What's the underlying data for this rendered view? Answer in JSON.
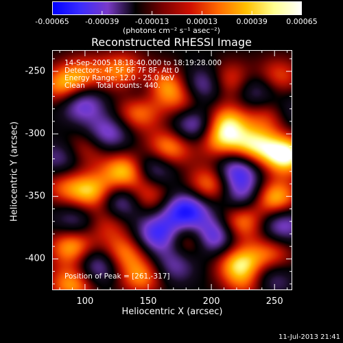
{
  "colorbar": {
    "ticks": [
      "-0.00065",
      "-0.00039",
      "-0.00013",
      "0.00013",
      "0.00039",
      "0.00065"
    ],
    "units": "(photons cm⁻² s⁻¹ asec⁻²)",
    "colors": [
      "#0000ff",
      "#3a2cff",
      "#7a3ac8",
      "#000000",
      "#7a0000",
      "#d01000",
      "#ff6a00",
      "#ffc000",
      "#ffff90",
      "#ffffff"
    ]
  },
  "annotations": {
    "time_range": "14-Sep-2005 18:18:40.000 to 18:19:28.000",
    "detectors": "Detectors: 4F 5F 6F 7F 8F, Att 0",
    "energy_range": "Energy Range: 12.0 - 25.0 keV",
    "algorithm": "Clean     Total counts: 440.",
    "peak": "Position of Peak = [261,-317]"
  },
  "footer": {
    "timestamp": "11-Jul-2013 21:41"
  },
  "chart_data": {
    "type": "heatmap",
    "title": "Reconstructed RHESSI Image",
    "xlabel": "Heliocentric X (arcsec)",
    "ylabel": "Heliocentric Y (arcsec)",
    "xlim": [
      74,
      264
    ],
    "ylim": [
      -425,
      -233
    ],
    "xticks": [
      100,
      150,
      200,
      250
    ],
    "yticks": [
      -250,
      -300,
      -350,
      -400
    ],
    "color_range": [
      -0.00065,
      0.00065
    ],
    "peak_position": [
      261,
      -317
    ],
    "blobs": [
      {
        "x": 83,
        "y": -262,
        "v": 0.00045
      },
      {
        "x": 100,
        "y": -252,
        "v": 0.0003
      },
      {
        "x": 130,
        "y": -250,
        "v": 0.0004
      },
      {
        "x": 162,
        "y": -262,
        "v": 0.0005
      },
      {
        "x": 215,
        "y": -258,
        "v": 0.00038
      },
      {
        "x": 252,
        "y": -255,
        "v": 0.00035
      },
      {
        "x": 142,
        "y": -283,
        "v": 0.0004
      },
      {
        "x": 180,
        "y": -275,
        "v": 0.0003
      },
      {
        "x": 212,
        "y": -290,
        "v": 0.00045
      },
      {
        "x": 248,
        "y": -285,
        "v": 0.00038
      },
      {
        "x": 100,
        "y": -312,
        "v": 0.0003
      },
      {
        "x": 132,
        "y": -330,
        "v": 0.00055
      },
      {
        "x": 166,
        "y": -312,
        "v": 0.00048
      },
      {
        "x": 207,
        "y": -305,
        "v": 0.0004
      },
      {
        "x": 234,
        "y": -310,
        "v": 0.0005
      },
      {
        "x": 259,
        "y": -317,
        "v": 0.00065
      },
      {
        "x": 84,
        "y": -342,
        "v": 0.0003
      },
      {
        "x": 106,
        "y": -347,
        "v": 0.00048
      },
      {
        "x": 150,
        "y": -350,
        "v": 0.00035
      },
      {
        "x": 200,
        "y": -340,
        "v": 0.00045
      },
      {
        "x": 250,
        "y": -352,
        "v": 0.00055
      },
      {
        "x": 118,
        "y": -370,
        "v": 0.0003
      },
      {
        "x": 224,
        "y": -370,
        "v": 0.00045
      },
      {
        "x": 90,
        "y": -390,
        "v": 0.0005
      },
      {
        "x": 130,
        "y": -395,
        "v": 0.0004
      },
      {
        "x": 184,
        "y": -384,
        "v": 0.00045
      },
      {
        "x": 222,
        "y": -404,
        "v": 0.0005
      },
      {
        "x": 247,
        "y": -397,
        "v": 0.00035
      },
      {
        "x": 145,
        "y": -414,
        "v": 0.0004
      },
      {
        "x": 90,
        "y": -420,
        "v": 0.00045
      },
      {
        "x": 230,
        "y": -420,
        "v": 0.0003
      },
      {
        "x": 97,
        "y": -275,
        "v": -0.00042
      },
      {
        "x": 148,
        "y": -265,
        "v": -0.0003
      },
      {
        "x": 194,
        "y": -262,
        "v": -0.0004
      },
      {
        "x": 236,
        "y": -265,
        "v": -0.00035
      },
      {
        "x": 118,
        "y": -300,
        "v": -0.00038
      },
      {
        "x": 187,
        "y": -292,
        "v": -0.00045
      },
      {
        "x": 260,
        "y": -283,
        "v": -0.0003
      },
      {
        "x": 82,
        "y": -320,
        "v": -0.0003
      },
      {
        "x": 154,
        "y": -327,
        "v": -0.0004
      },
      {
        "x": 220,
        "y": -330,
        "v": -0.0005
      },
      {
        "x": 128,
        "y": -355,
        "v": -0.00045
      },
      {
        "x": 180,
        "y": -362,
        "v": -0.0006
      },
      {
        "x": 225,
        "y": -350,
        "v": -0.00035
      },
      {
        "x": 93,
        "y": -370,
        "v": -0.0003
      },
      {
        "x": 255,
        "y": -372,
        "v": -0.0004
      },
      {
        "x": 158,
        "y": -380,
        "v": -0.0005
      },
      {
        "x": 200,
        "y": -382,
        "v": -0.00058
      },
      {
        "x": 110,
        "y": -405,
        "v": -0.0004
      },
      {
        "x": 170,
        "y": -405,
        "v": -0.0003
      },
      {
        "x": 245,
        "y": -415,
        "v": -0.00035
      }
    ]
  }
}
